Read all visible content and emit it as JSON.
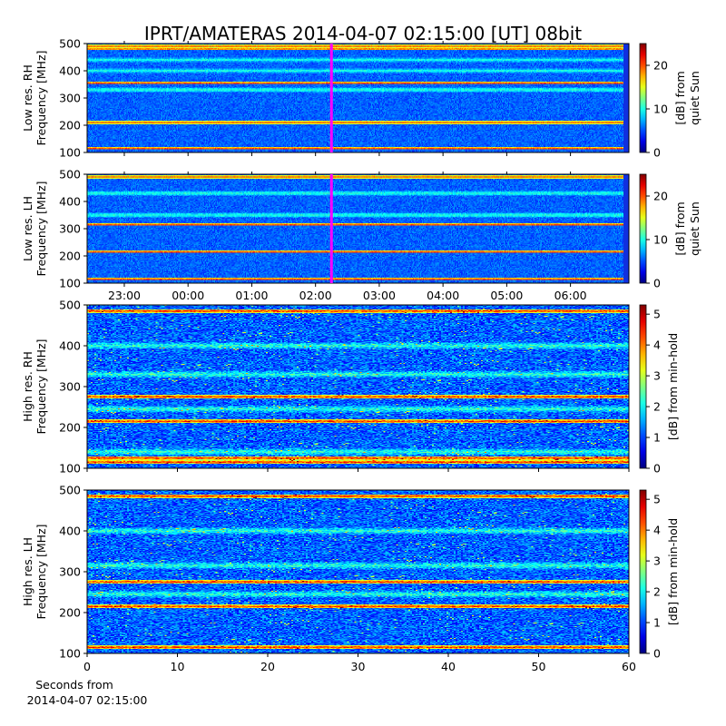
{
  "title": "IPRT/AMATERAS 2014-04-07 02:15:00 [UT]   08bit",
  "colors": {
    "marker_line": "#ff00ff",
    "colormap": "jet"
  },
  "chart_data": [
    {
      "type": "heatmap",
      "id": "low-rh",
      "ylabel_line1": "Low res. RH",
      "ylabel_line2": "Frequency [MHz]",
      "ylim": [
        100,
        500
      ],
      "yticks": [
        "100",
        "200",
        "300",
        "400",
        "500"
      ],
      "x_axis": "time_ut",
      "xlim": [
        "2014-04-06 22:25",
        "2014-04-07 06:55"
      ],
      "xticks": [],
      "colorbar": {
        "label_line1": "[dB] from",
        "label_line2": "quiet Sun",
        "range": [
          0,
          25
        ],
        "ticks": [
          "0",
          "10",
          "20"
        ]
      },
      "marker_time": "2014-04-07 02:15",
      "bright_bands_mhz": [
        115,
        210,
        355,
        480,
        490
      ],
      "secondary_bands_mhz": [
        330,
        400,
        440
      ]
    },
    {
      "type": "heatmap",
      "id": "low-lh",
      "ylabel_line1": "Low res. LH",
      "ylabel_line2": "Frequency [MHz]",
      "ylim": [
        100,
        500
      ],
      "yticks": [
        "100",
        "200",
        "300",
        "400",
        "500"
      ],
      "x_axis": "time_ut",
      "xlim": [
        "2014-04-06 22:25",
        "2014-04-07 06:55"
      ],
      "xticks": [
        "23:00",
        "00:00",
        "01:00",
        "02:00",
        "03:00",
        "04:00",
        "05:00",
        "06:00"
      ],
      "colorbar": {
        "label_line1": "[dB] from",
        "label_line2": "quiet Sun",
        "range": [
          0,
          25
        ],
        "ticks": [
          "0",
          "10",
          "20"
        ]
      },
      "marker_time": "2014-04-07 02:15",
      "bright_bands_mhz": [
        115,
        215,
        315,
        490
      ],
      "secondary_bands_mhz": [
        350,
        430
      ]
    },
    {
      "type": "heatmap",
      "id": "high-rh",
      "ylabel_line1": "High res. RH",
      "ylabel_line2": "Frequency [MHz]",
      "ylim": [
        100,
        500
      ],
      "yticks": [
        "100",
        "200",
        "300",
        "400",
        "500"
      ],
      "x_axis": "seconds",
      "xlim": [
        0,
        60
      ],
      "xticks": [],
      "colorbar": {
        "label": "[dB] from min-hold",
        "range": [
          0,
          5.3
        ],
        "ticks": [
          "0",
          "1",
          "2",
          "3",
          "4",
          "5"
        ]
      },
      "bright_bands_mhz": [
        115,
        125,
        215,
        275,
        485
      ],
      "secondary_bands_mhz": [
        140,
        245,
        330,
        400
      ]
    },
    {
      "type": "heatmap",
      "id": "high-lh",
      "ylabel_line1": "High res. LH",
      "ylabel_line2": "Frequency [MHz]",
      "ylim": [
        100,
        500
      ],
      "yticks": [
        "100",
        "200",
        "300",
        "400",
        "500"
      ],
      "x_axis": "seconds",
      "xlim": [
        0,
        60
      ],
      "xticks": [
        "0",
        "10",
        "20",
        "30",
        "40",
        "50",
        "60"
      ],
      "xlabel_line1": "Seconds from",
      "xlabel_line2": "2014-04-07 02:15:00",
      "colorbar": {
        "label": "[dB] from min-hold",
        "range": [
          0,
          5.3
        ],
        "ticks": [
          "0",
          "1",
          "2",
          "3",
          "4",
          "5"
        ]
      },
      "bright_bands_mhz": [
        115,
        215,
        275,
        485
      ],
      "secondary_bands_mhz": [
        245,
        315,
        400
      ]
    }
  ]
}
